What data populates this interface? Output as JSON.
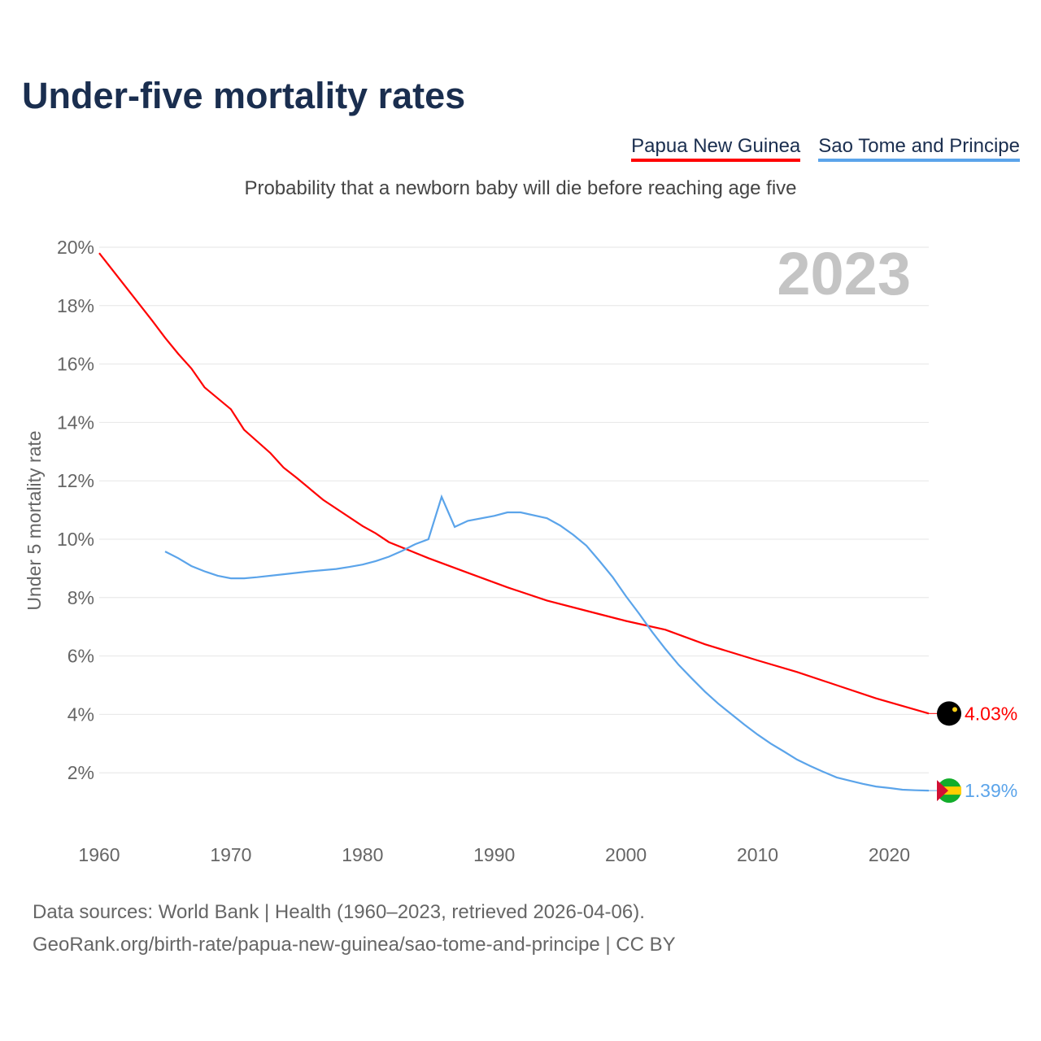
{
  "chart_data": {
    "type": "line",
    "title": "Under-five mortality rates",
    "subtitle": "Probability that a newborn baby will die before reaching age five",
    "ylabel": "Under 5 mortality rate",
    "xlabel": "",
    "year_label": "2023",
    "xlim": [
      1960,
      2023
    ],
    "ylim": [
      0,
      20
    ],
    "x_ticks": [
      1960,
      1970,
      1980,
      1990,
      2000,
      2010,
      2020
    ],
    "y_ticks": [
      2,
      4,
      6,
      8,
      10,
      12,
      14,
      16,
      18,
      20
    ],
    "y_tick_suffix": "%",
    "grid": true,
    "legend_position": "top-right",
    "series": [
      {
        "name": "Papua New Guinea",
        "color": "#ff0000",
        "end_label": "4.03%",
        "points": [
          [
            1960,
            19.8
          ],
          [
            1964,
            17.5
          ],
          [
            1965,
            16.9
          ],
          [
            1966,
            16.35
          ],
          [
            1967,
            15.85
          ],
          [
            1968,
            15.2
          ],
          [
            1970,
            14.45
          ],
          [
            1971,
            13.75
          ],
          [
            1973,
            12.95
          ],
          [
            1974,
            12.45
          ],
          [
            1975,
            12.1
          ],
          [
            1977,
            11.35
          ],
          [
            1980,
            10.45
          ],
          [
            1981,
            10.2
          ],
          [
            1982,
            9.9
          ],
          [
            1985,
            9.35
          ],
          [
            1988,
            8.85
          ],
          [
            1991,
            8.35
          ],
          [
            1994,
            7.9
          ],
          [
            1997,
            7.55
          ],
          [
            2000,
            7.2
          ],
          [
            2003,
            6.9
          ],
          [
            2006,
            6.4
          ],
          [
            2010,
            5.85
          ],
          [
            2013,
            5.45
          ],
          [
            2016,
            5.0
          ],
          [
            2019,
            4.55
          ],
          [
            2023,
            4.03
          ]
        ]
      },
      {
        "name": "Sao Tome and Principe",
        "color": "#5ba4ea",
        "end_label": "1.39%",
        "points": [
          [
            1965,
            9.58
          ],
          [
            1966,
            9.35
          ],
          [
            1967,
            9.08
          ],
          [
            1968,
            8.9
          ],
          [
            1969,
            8.75
          ],
          [
            1970,
            8.66
          ],
          [
            1971,
            8.66
          ],
          [
            1972,
            8.7
          ],
          [
            1974,
            8.8
          ],
          [
            1976,
            8.9
          ],
          [
            1978,
            8.98
          ],
          [
            1979,
            9.05
          ],
          [
            1980,
            9.13
          ],
          [
            1981,
            9.25
          ],
          [
            1982,
            9.4
          ],
          [
            1983,
            9.6
          ],
          [
            1984,
            9.83
          ],
          [
            1985,
            10.0
          ],
          [
            1986,
            11.45
          ],
          [
            1987,
            10.42
          ],
          [
            1988,
            10.63
          ],
          [
            1990,
            10.8
          ],
          [
            1991,
            10.92
          ],
          [
            1992,
            10.92
          ],
          [
            1994,
            10.72
          ],
          [
            1995,
            10.47
          ],
          [
            1996,
            10.15
          ],
          [
            1997,
            9.78
          ],
          [
            1998,
            9.25
          ],
          [
            1999,
            8.7
          ],
          [
            2000,
            8.05
          ],
          [
            2001,
            7.45
          ],
          [
            2002,
            6.82
          ],
          [
            2003,
            6.24
          ],
          [
            2004,
            5.7
          ],
          [
            2005,
            5.23
          ],
          [
            2006,
            4.78
          ],
          [
            2007,
            4.37
          ],
          [
            2008,
            4.01
          ],
          [
            2009,
            3.65
          ],
          [
            2010,
            3.31
          ],
          [
            2011,
            3.0
          ],
          [
            2012,
            2.73
          ],
          [
            2013,
            2.45
          ],
          [
            2014,
            2.23
          ],
          [
            2015,
            2.03
          ],
          [
            2016,
            1.84
          ],
          [
            2017,
            1.73
          ],
          [
            2018,
            1.62
          ],
          [
            2019,
            1.53
          ],
          [
            2020,
            1.48
          ],
          [
            2021,
            1.42
          ],
          [
            2022,
            1.4
          ],
          [
            2023,
            1.39
          ]
        ]
      }
    ]
  },
  "footer": {
    "line1": "Data sources: World Bank | Health (1960–2023, retrieved 2026-04-06).",
    "line2": "GeoRank.org/birth-rate/papua-new-guinea/sao-tome-and-principe | CC BY"
  }
}
